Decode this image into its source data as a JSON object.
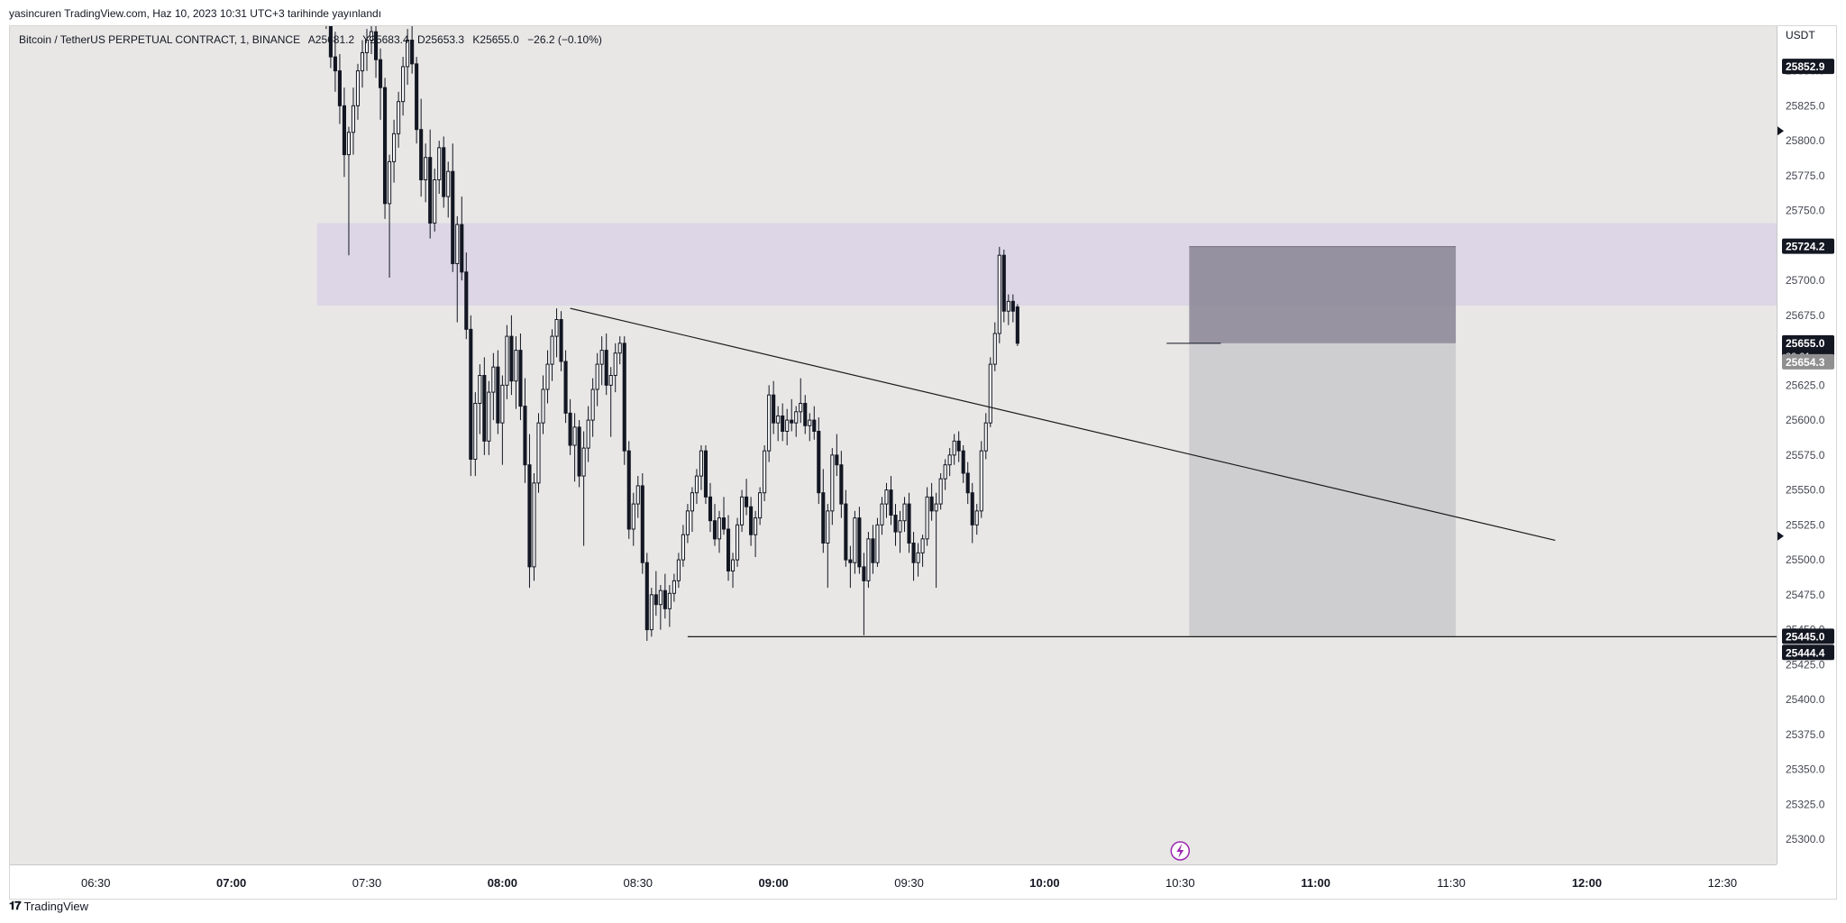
{
  "header": {
    "published_by": "yasincuren TradingView.com, Haz 10, 2023 10:31 UTC+3 tarihinde yayınlandı"
  },
  "legend": {
    "symbol": "Bitcoin / TetherUS PERPETUAL CONTRACT, 1, BINANCE",
    "open": "A25681.2",
    "high": "Y25683.4",
    "low": "D25653.3",
    "close": "K25655.0",
    "change": "−26.2 (−0.10%)"
  },
  "footer": {
    "logo_text": "TradingView"
  },
  "chart_data": {
    "type": "candlestick",
    "currency": "USDT",
    "y_range": [
      25282,
      25882
    ],
    "x_ticks": [
      "06:30",
      "07:00",
      "07:30",
      "08:00",
      "08:30",
      "09:00",
      "09:30",
      "10:00",
      "10:30",
      "11:00",
      "11:30",
      "12:00",
      "12:30"
    ],
    "x_ticks_bold": [
      "07:00",
      "08:00",
      "09:00",
      "10:00",
      "11:00",
      "12:00"
    ],
    "y_ticks": [
      25875.0,
      25850.0,
      25825.0,
      25800.0,
      25775.0,
      25750.0,
      25725.0,
      25700.0,
      25675.0,
      25650.0,
      25625.0,
      25600.0,
      25575.0,
      25550.0,
      25525.0,
      25500.0,
      25475.0,
      25450.0,
      25425.0,
      25400.0,
      25375.0,
      25350.0,
      25325.0,
      25300.0
    ],
    "price_labels": [
      {
        "value": "25852.9",
        "price": 25852.9,
        "style": "dark"
      },
      {
        "value": "25724.2",
        "price": 25724.2,
        "style": "dark"
      },
      {
        "value": "25655.0",
        "price": 25655.0,
        "style": "dark",
        "sub": "00:01"
      },
      {
        "value": "25654.3",
        "price": 25654.3,
        "style": "gray"
      },
      {
        "value": "25445.0",
        "price": 25445.0,
        "style": "dark"
      },
      {
        "value": "25444.4",
        "price": 25444.4,
        "style": "dark"
      }
    ],
    "arrow_markers": [
      25807,
      25517
    ],
    "resistance_zone": {
      "top": 25741,
      "bottom": 25682,
      "start": "07:19",
      "end": "right-edge"
    },
    "trendline": {
      "start": {
        "time": "08:15",
        "price": 25680
      },
      "end": {
        "time": "11:53",
        "price": 25514
      }
    },
    "support_line": {
      "start": {
        "time": "08:41",
        "price": 25445
      },
      "end": "right-edge"
    },
    "short_position": {
      "start": "10:32",
      "end": "11:31",
      "stop": 25724.2,
      "entry": 25655.0,
      "target": 25445.0
    },
    "current_price_line": {
      "price": 25655,
      "start": "10:27",
      "end": "10:39"
    },
    "candles_start": "07:21",
    "candles_interval_minutes": 1,
    "candles": [
      [
        25895,
        25905,
        25880,
        25890
      ],
      [
        25890,
        25900,
        25852,
        25860
      ],
      [
        25860,
        25878,
        25835,
        25850
      ],
      [
        25850,
        25862,
        25812,
        25825
      ],
      [
        25825,
        25838,
        25774,
        25790
      ],
      [
        25790,
        25810,
        25718,
        25806
      ],
      [
        25806,
        25838,
        25790,
        25825
      ],
      [
        25825,
        25855,
        25815,
        25850
      ],
      [
        25850,
        25872,
        25838,
        25863
      ],
      [
        25863,
        25880,
        25850,
        25872
      ],
      [
        25872,
        25885,
        25862,
        25878
      ],
      [
        25878,
        25890,
        25845,
        25858
      ],
      [
        25858,
        25866,
        25815,
        25838
      ],
      [
        25838,
        25845,
        25744,
        25755
      ],
      [
        25755,
        25790,
        25702,
        25785
      ],
      [
        25785,
        25815,
        25770,
        25805
      ],
      [
        25805,
        25835,
        25795,
        25828
      ],
      [
        25828,
        25860,
        25818,
        25853
      ],
      [
        25853,
        25880,
        25840,
        25872
      ],
      [
        25872,
        25890,
        25848,
        25855
      ],
      [
        25855,
        25860,
        25798,
        25808
      ],
      [
        25808,
        25830,
        25760,
        25772
      ],
      [
        25772,
        25798,
        25756,
        25788
      ],
      [
        25788,
        25808,
        25730,
        25741
      ],
      [
        25741,
        25780,
        25735,
        25772
      ],
      [
        25772,
        25800,
        25762,
        25795
      ],
      [
        25795,
        25803,
        25752,
        25760
      ],
      [
        25760,
        25785,
        25745,
        25778
      ],
      [
        25778,
        25798,
        25706,
        25712
      ],
      [
        25712,
        25746,
        25670,
        25740
      ],
      [
        25740,
        25760,
        25700,
        25706
      ],
      [
        25706,
        25720,
        25658,
        25665
      ],
      [
        25665,
        25675,
        25560,
        25572
      ],
      [
        25572,
        25620,
        25560,
        25612
      ],
      [
        25612,
        25640,
        25590,
        25632
      ],
      [
        25632,
        25645,
        25575,
        25585
      ],
      [
        25585,
        25628,
        25575,
        25620
      ],
      [
        25620,
        25648,
        25600,
        25638
      ],
      [
        25638,
        25650,
        25590,
        25598
      ],
      [
        25598,
        25632,
        25568,
        25625
      ],
      [
        25625,
        25668,
        25615,
        25660
      ],
      [
        25660,
        25675,
        25618,
        25628
      ],
      [
        25628,
        25660,
        25608,
        25650
      ],
      [
        25650,
        25662,
        25600,
        25610
      ],
      [
        25610,
        25630,
        25555,
        25568
      ],
      [
        25568,
        25590,
        25480,
        25495
      ],
      [
        25495,
        25562,
        25485,
        25555
      ],
      [
        25555,
        25605,
        25548,
        25598
      ],
      [
        25598,
        25632,
        25590,
        25622
      ],
      [
        25622,
        25650,
        25612,
        25640
      ],
      [
        25640,
        25665,
        25628,
        25660
      ],
      [
        25660,
        25680,
        25645,
        25672
      ],
      [
        25672,
        25678,
        25635,
        25642
      ],
      [
        25642,
        25650,
        25598,
        25605
      ],
      [
        25605,
        25615,
        25575,
        25582
      ],
      [
        25582,
        25605,
        25556,
        25595
      ],
      [
        25595,
        25600,
        25552,
        25560
      ],
      [
        25560,
        25592,
        25510,
        25580
      ],
      [
        25580,
        25610,
        25570,
        25600
      ],
      [
        25600,
        25630,
        25588,
        25622
      ],
      [
        25622,
        25648,
        25610,
        25640
      ],
      [
        25640,
        25660,
        25625,
        25650
      ],
      [
        25650,
        25662,
        25618,
        25625
      ],
      [
        25625,
        25638,
        25588,
        25632
      ],
      [
        25632,
        25655,
        25620,
        25648
      ],
      [
        25648,
        25660,
        25640,
        25655
      ],
      [
        25655,
        25660,
        25568,
        25578
      ],
      [
        25578,
        25585,
        25515,
        25522
      ],
      [
        25522,
        25548,
        25510,
        25540
      ],
      [
        25540,
        25560,
        25530,
        25553
      ],
      [
        25553,
        25562,
        25490,
        25498
      ],
      [
        25498,
        25505,
        25442,
        25450
      ],
      [
        25450,
        25480,
        25445,
        25475
      ],
      [
        25475,
        25492,
        25460,
        25468
      ],
      [
        25468,
        25482,
        25450,
        25478
      ],
      [
        25478,
        25490,
        25458,
        25465
      ],
      [
        25465,
        25482,
        25452,
        25476
      ],
      [
        25476,
        25490,
        25470,
        25485
      ],
      [
        25485,
        25505,
        25480,
        25500
      ],
      [
        25500,
        25525,
        25495,
        25518
      ],
      [
        25518,
        25540,
        25512,
        25535
      ],
      [
        25535,
        25552,
        25520,
        25548
      ],
      [
        25548,
        25565,
        25540,
        25560
      ],
      [
        25560,
        25582,
        25550,
        25578
      ],
      [
        25578,
        25582,
        25540,
        25545
      ],
      [
        25545,
        25555,
        25520,
        25528
      ],
      [
        25528,
        25540,
        25510,
        25515
      ],
      [
        25515,
        25535,
        25505,
        25530
      ],
      [
        25530,
        25545,
        25518,
        25522
      ],
      [
        25522,
        25532,
        25485,
        25492
      ],
      [
        25492,
        25505,
        25480,
        25500
      ],
      [
        25500,
        25530,
        25495,
        25525
      ],
      [
        25525,
        25550,
        25520,
        25545
      ],
      [
        25545,
        25558,
        25532,
        25538
      ],
      [
        25538,
        25545,
        25510,
        25518
      ],
      [
        25518,
        25535,
        25502,
        25530
      ],
      [
        25530,
        25552,
        25525,
        25548
      ],
      [
        25548,
        25582,
        25542,
        25578
      ],
      [
        25578,
        25625,
        25570,
        25618
      ],
      [
        25618,
        25628,
        25590,
        25598
      ],
      [
        25598,
        25610,
        25585,
        25603
      ],
      [
        25603,
        25612,
        25585,
        25592
      ],
      [
        25592,
        25608,
        25582,
        25600
      ],
      [
        25600,
        25615,
        25592,
        25598
      ],
      [
        25598,
        25610,
        25588,
        25606
      ],
      [
        25606,
        25630,
        25598,
        25612
      ],
      [
        25612,
        25618,
        25590,
        25596
      ],
      [
        25596,
        25605,
        25585,
        25600
      ],
      [
        25600,
        25610,
        25586,
        25592
      ],
      [
        25592,
        25602,
        25540,
        25548
      ],
      [
        25548,
        25565,
        25505,
        25512
      ],
      [
        25512,
        25540,
        25480,
        25535
      ],
      [
        25535,
        25580,
        25525,
        25575
      ],
      [
        25575,
        25590,
        25560,
        25568
      ],
      [
        25568,
        25578,
        25530,
        25540
      ],
      [
        25540,
        25550,
        25495,
        25500
      ],
      [
        25500,
        25510,
        25480,
        25498
      ],
      [
        25498,
        25535,
        25490,
        25530
      ],
      [
        25530,
        25538,
        25490,
        25495
      ],
      [
        25495,
        25505,
        25446,
        25485
      ],
      [
        25485,
        25520,
        25480,
        25515
      ],
      [
        25515,
        25525,
        25490,
        25498
      ],
      [
        25498,
        25530,
        25495,
        25525
      ],
      [
        25525,
        25545,
        25518,
        25540
      ],
      [
        25540,
        25555,
        25530,
        25550
      ],
      [
        25550,
        25560,
        25525,
        25532
      ],
      [
        25532,
        25540,
        25510,
        25520
      ],
      [
        25520,
        25535,
        25505,
        25528
      ],
      [
        25528,
        25545,
        25520,
        25540
      ],
      [
        25540,
        25548,
        25505,
        25512
      ],
      [
        25512,
        25520,
        25485,
        25498
      ],
      [
        25498,
        25512,
        25488,
        25505
      ],
      [
        25505,
        25518,
        25495,
        25515
      ],
      [
        25515,
        25552,
        25510,
        25545
      ],
      [
        25545,
        25555,
        25528,
        25535
      ],
      [
        25535,
        25548,
        25480,
        25540
      ],
      [
        25540,
        25562,
        25536,
        25558
      ],
      [
        25558,
        25572,
        25550,
        25568
      ],
      [
        25568,
        25580,
        25560,
        25575
      ],
      [
        25575,
        25590,
        25568,
        25585
      ],
      [
        25585,
        25592,
        25570,
        25578
      ],
      [
        25578,
        25582,
        25555,
        25562
      ],
      [
        25562,
        25570,
        25540,
        25548
      ],
      [
        25548,
        25555,
        25512,
        25525
      ],
      [
        25525,
        25540,
        25518,
        25535
      ],
      [
        25535,
        25585,
        25530,
        25578
      ],
      [
        25578,
        25605,
        25572,
        25598
      ],
      [
        25598,
        25645,
        25595,
        25640
      ],
      [
        25640,
        25670,
        25635,
        25662
      ],
      [
        25662,
        25724,
        25655,
        25718
      ],
      [
        25718,
        25722,
        25670,
        25678
      ],
      [
        25678,
        25690,
        25668,
        25685
      ],
      [
        25685,
        25690,
        25670,
        25678
      ],
      [
        25681,
        25683,
        25653,
        25655
      ]
    ]
  }
}
